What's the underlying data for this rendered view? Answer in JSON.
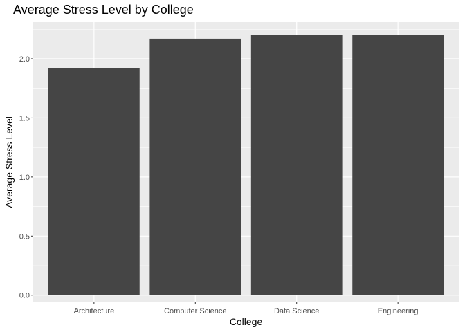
{
  "chart_data": {
    "type": "bar",
    "title": "Average Stress Level by College",
    "xlabel": "College",
    "ylabel": "Average Stress Level",
    "categories": [
      "Architecture",
      "Computer Science",
      "Data Science",
      "Engineering"
    ],
    "values": [
      1.92,
      2.17,
      2.2,
      2.2
    ],
    "ylim": [
      -0.06,
      2.31
    ],
    "yticks": [
      0.0,
      0.5,
      1.0,
      1.5,
      2.0
    ],
    "ytick_labels": [
      "0.0",
      "0.5",
      "1.0",
      "1.5",
      "2.0"
    ],
    "grid": true,
    "legend": "none",
    "colors": {
      "bar": "#454545",
      "panel_background": "#ebebeb",
      "grid_major": "#ffffff",
      "tick_label": "#4d4d4d",
      "tick_mark": "#333333"
    }
  }
}
